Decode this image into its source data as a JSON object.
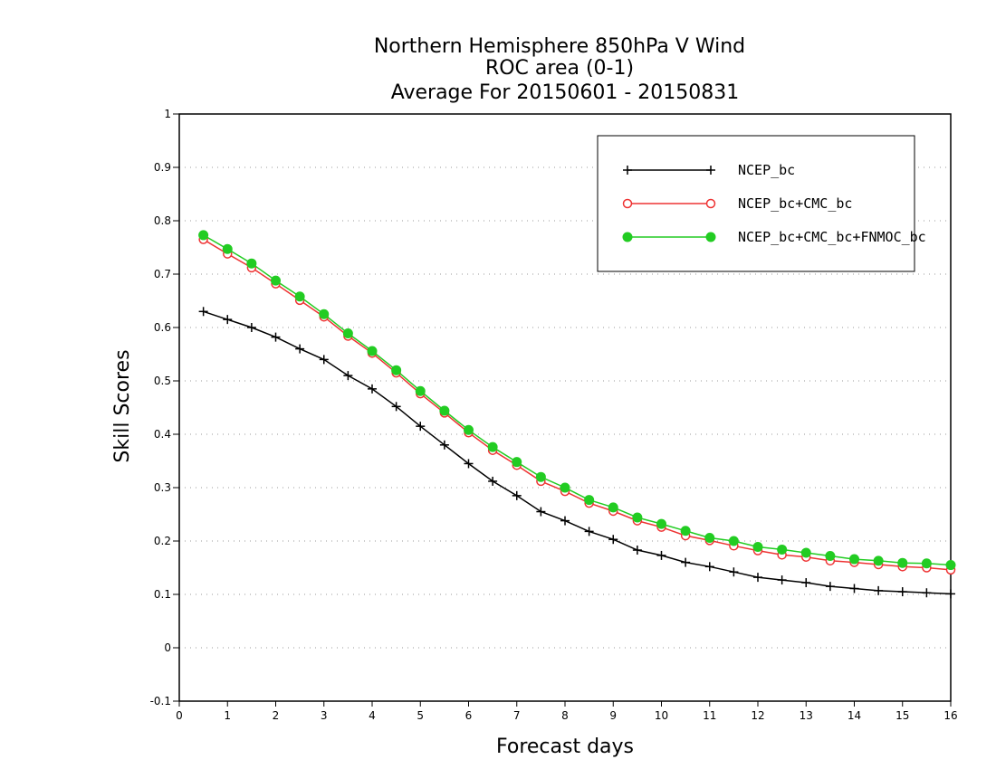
{
  "chart_data": {
    "type": "line",
    "title_lines": [
      "Northern Hemisphere 850hPa V Wind",
      "ROC area (0-1)",
      "Average For 20150601 - 20150831"
    ],
    "xlabel": "Forecast days",
    "ylabel": "Skill Scores",
    "xlim": [
      0,
      16
    ],
    "ylim": [
      -0.1,
      1
    ],
    "xticks": [
      0,
      1,
      2,
      3,
      4,
      5,
      6,
      7,
      8,
      9,
      10,
      11,
      12,
      13,
      14,
      15,
      16
    ],
    "yticks": [
      -0.1,
      0,
      0.1,
      0.2,
      0.3,
      0.4,
      0.5,
      0.6,
      0.7,
      0.8,
      0.9,
      1
    ],
    "ytick_labels": [
      "-0.1",
      "0",
      "0.1",
      "0.2",
      "0.3",
      "0.4",
      "0.5",
      "0.6",
      "0.7",
      "0.8",
      "0.9",
      "1"
    ],
    "grid": true,
    "legend_position": "top-right",
    "x": [
      0.5,
      1,
      1.5,
      2,
      2.5,
      3,
      3.5,
      4,
      4.5,
      5,
      5.5,
      6,
      6.5,
      7,
      7.5,
      8,
      8.5,
      9,
      9.5,
      10,
      10.5,
      11,
      11.5,
      12,
      12.5,
      13,
      13.5,
      14,
      14.5,
      15,
      15.5,
      16
    ],
    "series": [
      {
        "name": "NCEP_bc",
        "color": "#000000",
        "marker": "plus",
        "values": [
          0.63,
          0.615,
          0.6,
          0.582,
          0.56,
          0.54,
          0.51,
          0.485,
          0.452,
          0.415,
          0.38,
          0.345,
          0.312,
          0.285,
          0.255,
          0.238,
          0.218,
          0.203,
          0.183,
          0.173,
          0.16,
          0.152,
          0.142,
          0.132,
          0.127,
          0.122,
          0.115,
          0.111,
          0.107,
          0.105,
          0.103,
          0.101
        ]
      },
      {
        "name": "NCEP_bc+CMC_bc",
        "color": "#ee3333",
        "marker": "open-circle",
        "values": [
          0.765,
          0.738,
          0.712,
          0.682,
          0.651,
          0.62,
          0.584,
          0.552,
          0.515,
          0.476,
          0.44,
          0.403,
          0.37,
          0.342,
          0.312,
          0.293,
          0.271,
          0.256,
          0.238,
          0.226,
          0.21,
          0.201,
          0.191,
          0.182,
          0.174,
          0.17,
          0.163,
          0.16,
          0.156,
          0.152,
          0.15,
          0.146
        ]
      },
      {
        "name": "NCEP_bc+CMC_bc+FNMOC_bc",
        "color": "#22cc22",
        "marker": "filled-circle",
        "values": [
          0.773,
          0.747,
          0.72,
          0.688,
          0.658,
          0.625,
          0.589,
          0.556,
          0.52,
          0.481,
          0.444,
          0.408,
          0.376,
          0.348,
          0.32,
          0.3,
          0.277,
          0.263,
          0.244,
          0.232,
          0.219,
          0.206,
          0.2,
          0.189,
          0.184,
          0.178,
          0.172,
          0.166,
          0.163,
          0.159,
          0.158,
          0.155
        ]
      }
    ]
  }
}
